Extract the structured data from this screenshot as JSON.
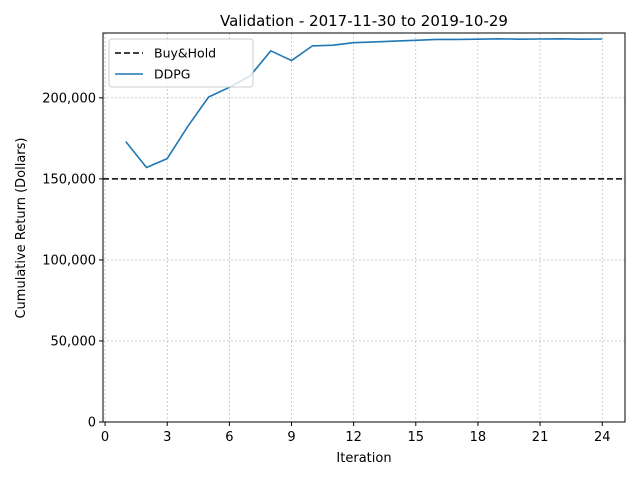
{
  "chart_data": {
    "type": "line",
    "title": "Validation - 2017-11-30 to 2019-10-29",
    "xlabel": "Iteration",
    "ylabel": "Cumulative Return (Dollars)",
    "xlim": [
      -0.1,
      25.1
    ],
    "ylim": [
      0,
      240000
    ],
    "xticks": [
      0,
      3,
      6,
      9,
      12,
      15,
      18,
      21,
      24
    ],
    "yticks": [
      0,
      50000,
      100000,
      150000,
      200000
    ],
    "ytick_labels": [
      "0",
      "50,000",
      "100,000",
      "150,000",
      "200,000"
    ],
    "grid": true,
    "legend_position": "top-left",
    "series": [
      {
        "name": "Buy&Hold",
        "style": "dashed",
        "color": "#000000",
        "y_constant": 150000
      },
      {
        "name": "DDPG",
        "style": "solid",
        "color": "#1f77b4",
        "x": [
          1,
          2,
          3,
          4,
          5,
          6,
          7,
          8,
          9,
          10,
          11,
          12,
          13,
          14,
          15,
          16,
          17,
          18,
          19,
          20,
          21,
          22,
          23,
          24
        ],
        "y": [
          173000,
          157000,
          162500,
          182500,
          200500,
          206500,
          213500,
          229000,
          223000,
          232000,
          232500,
          234000,
          234500,
          235000,
          235500,
          236000,
          236000,
          236200,
          236400,
          236200,
          236300,
          236400,
          236200,
          236300
        ]
      }
    ]
  }
}
